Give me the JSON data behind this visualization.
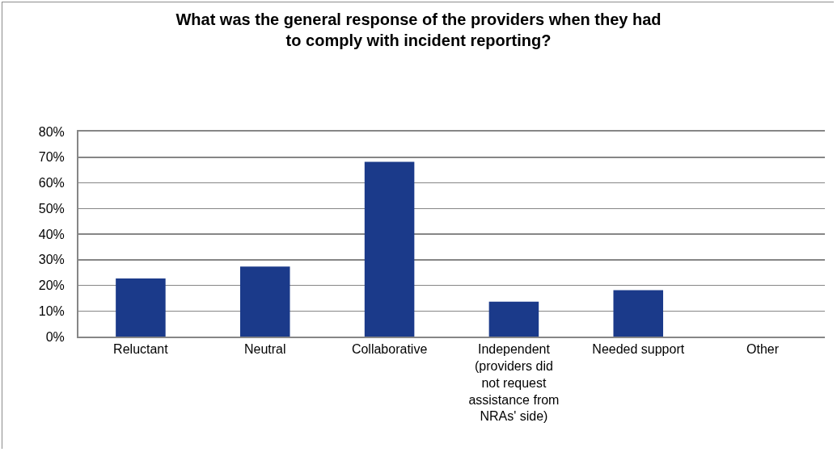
{
  "chart_data": {
    "type": "bar",
    "title": "What was the general response of the providers when they had to comply with incident reporting?",
    "categories": [
      "Reluctant",
      "Neutral",
      "Collaborative",
      "Independent (providers did not request assistance from NRAs' side)",
      "Needed support",
      "Other"
    ],
    "values": [
      22.7,
      27.3,
      68.2,
      13.6,
      18.1,
      0
    ],
    "color": "#1b3a8a",
    "ylim": [
      0,
      80
    ],
    "yticks": [
      {
        "value": 0,
        "label": "0%"
      },
      {
        "value": 10,
        "label": "10%"
      },
      {
        "value": 20,
        "label": "20%"
      },
      {
        "value": 30,
        "label": "30%"
      },
      {
        "value": 40,
        "label": "40%"
      },
      {
        "value": 50,
        "label": "50%"
      },
      {
        "value": 60,
        "label": "60%"
      },
      {
        "value": 70,
        "label": "70%"
      },
      {
        "value": 80,
        "label": "80%"
      }
    ],
    "grid": "y"
  }
}
